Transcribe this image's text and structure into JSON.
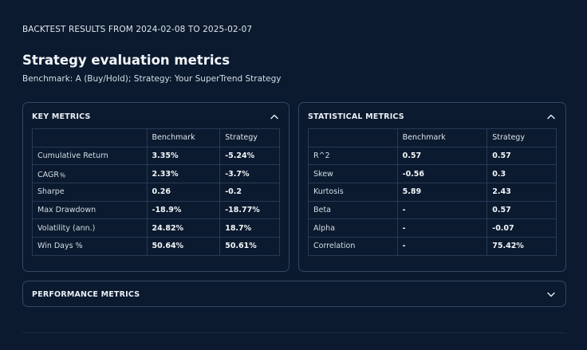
{
  "header": {
    "range_title": "BACKTEST RESULTS FROM 2024-02-08 TO 2025-02-07",
    "title": "Strategy evaluation metrics",
    "subtitle": "Benchmark: A (Buy/Hold); Strategy: Your SuperTrend Strategy"
  },
  "key_metrics": {
    "title": "KEY METRICS",
    "expanded": true,
    "columns": [
      "",
      "Benchmark",
      "Strategy"
    ],
    "rows": [
      {
        "label": "Cumulative Return",
        "benchmark": "3.35%",
        "strategy": "-5.24%"
      },
      {
        "label": "CAGR﹪",
        "benchmark": "2.33%",
        "strategy": "-3.7%"
      },
      {
        "label": "Sharpe",
        "benchmark": "0.26",
        "strategy": "-0.2"
      },
      {
        "label": "Max Drawdown",
        "benchmark": "-18.9%",
        "strategy": "-18.77%"
      },
      {
        "label": "Volatility (ann.)",
        "benchmark": "24.82%",
        "strategy": "18.7%"
      },
      {
        "label": "Win Days %",
        "benchmark": "50.64%",
        "strategy": "50.61%"
      }
    ]
  },
  "statistical_metrics": {
    "title": "STATISTICAL METRICS",
    "expanded": true,
    "columns": [
      "",
      "Benchmark",
      "Strategy"
    ],
    "rows": [
      {
        "label": "R^2",
        "benchmark": "0.57",
        "strategy": "0.57"
      },
      {
        "label": "Skew",
        "benchmark": "-0.56",
        "strategy": "0.3"
      },
      {
        "label": "Kurtosis",
        "benchmark": "5.89",
        "strategy": "2.43"
      },
      {
        "label": "Beta",
        "benchmark": "-",
        "strategy": "0.57"
      },
      {
        "label": "Alpha",
        "benchmark": "-",
        "strategy": "-0.07"
      },
      {
        "label": "Correlation",
        "benchmark": "-",
        "strategy": "75.42%"
      }
    ]
  },
  "performance_metrics": {
    "title": "PERFORMANCE METRICS",
    "expanded": false
  },
  "icons": {
    "collapse": "chevron-up-icon",
    "expand": "chevron-down-icon"
  },
  "colors": {
    "background": "#0b1a2e",
    "panel_border": "#324761",
    "grid": "#273b55",
    "text": "#e6edf5"
  }
}
